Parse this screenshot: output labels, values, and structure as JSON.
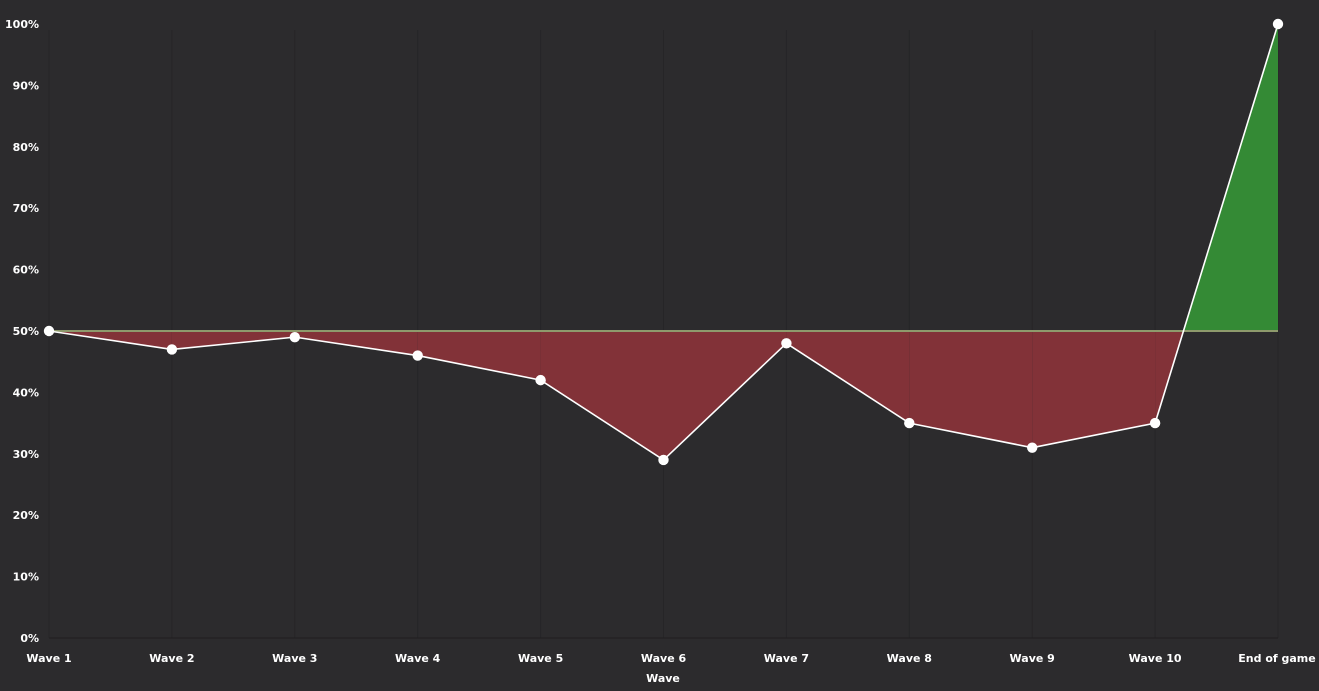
{
  "chart_data": {
    "type": "area",
    "title": "",
    "xlabel": "Wave",
    "ylabel": "",
    "categories": [
      "Wave 1",
      "Wave 2",
      "Wave 3",
      "Wave 4",
      "Wave 5",
      "Wave 6",
      "Wave 7",
      "Wave 8",
      "Wave 9",
      "Wave 10",
      "End of game"
    ],
    "series": [
      {
        "values": [
          50,
          47,
          49,
          46,
          42,
          29,
          48,
          35,
          31,
          35,
          100
        ]
      }
    ],
    "baseline": 50,
    "ylim": [
      0,
      100
    ],
    "yticks": [
      0,
      10,
      20,
      30,
      40,
      50,
      60,
      70,
      80,
      90,
      100
    ],
    "ytick_labels": [
      "0%",
      "10%",
      "20%",
      "30%",
      "40%",
      "50%",
      "60%",
      "70%",
      "80%",
      "90%",
      "100%"
    ],
    "grid": "vertical",
    "legend": "none",
    "colors": {
      "background": "#2c2b2d",
      "above_fill": "#348a35",
      "below_fill": "#823238",
      "line": "#ffffff",
      "baseline": "#8e9a6c",
      "gridline": "#262527",
      "axis": "#1f1e20"
    }
  }
}
